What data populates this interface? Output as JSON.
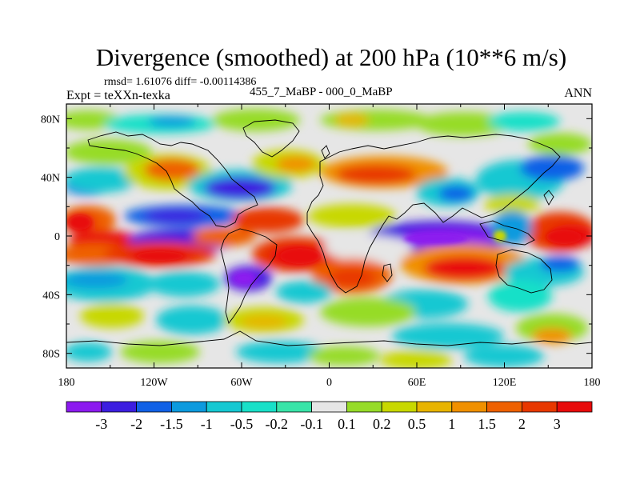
{
  "title": "Divergence (smoothed) at 200 hPa (10**6 m/s)",
  "stats": "rmsd= 1.61076  diff= -0.00114386",
  "experiment": "Expt = teXXn-texka",
  "cases": "455_7_MaBP - 000_0_MaBP",
  "season": "ANN",
  "map": {
    "projection": "cylindrical-equidistant",
    "lon_range": [
      -180,
      180
    ],
    "lat_range": [
      -90,
      90
    ],
    "x_ticks": [
      {
        "lon": -180,
        "label": "180"
      },
      {
        "lon": -120,
        "label": "120W"
      },
      {
        "lon": -60,
        "label": "60W"
      },
      {
        "lon": 0,
        "label": "0"
      },
      {
        "lon": 60,
        "label": "60E"
      },
      {
        "lon": 120,
        "label": "120E"
      },
      {
        "lon": 180,
        "label": "180"
      }
    ],
    "y_ticks": [
      {
        "lat": 80,
        "label": "80N"
      },
      {
        "lat": 40,
        "label": "40N"
      },
      {
        "lat": 0,
        "label": "0"
      },
      {
        "lat": -40,
        "label": "40S"
      },
      {
        "lat": -80,
        "label": "80S"
      }
    ],
    "field_description": "filled contours of 200 hPa divergence difference"
  },
  "colorbar": {
    "colors": [
      "#8c1aef",
      "#3c1ee0",
      "#1060e6",
      "#0c9ade",
      "#14c8d2",
      "#18e0c8",
      "#38e4a8",
      "#e6e6e6",
      "#96dc28",
      "#c8d800",
      "#e8b400",
      "#f09000",
      "#ee6000",
      "#e83800",
      "#e80a0a"
    ],
    "labels": [
      "-3",
      "-2",
      "-1.5",
      "-1",
      "-0.5",
      "-0.2",
      "-0.1",
      "0.1",
      "0.2",
      "0.5",
      "1",
      "1.5",
      "2",
      "3"
    ]
  }
}
